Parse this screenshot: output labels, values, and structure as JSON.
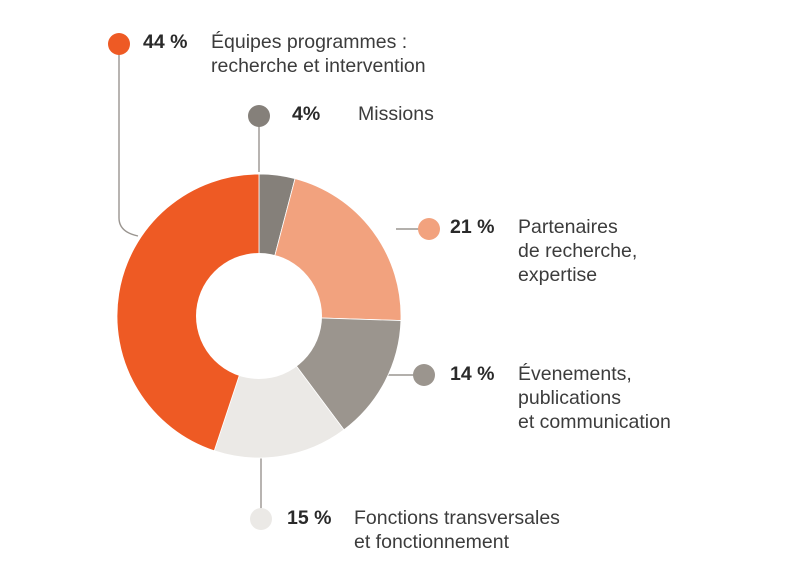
{
  "chart_data": {
    "type": "pie",
    "donut": true,
    "categories": [
      "Missions",
      "Partenaires de recherche, expertise",
      "Évenements, publications et communication",
      "Fonctions transversales et fonctionnement",
      "Équipes programmes : recherche et intervention"
    ],
    "values": [
      4,
      21,
      14,
      15,
      44
    ],
    "slices": [
      {
        "pct_label": "4%",
        "lines": [
          "Missions"
        ],
        "color": "#85807a"
      },
      {
        "pct_label": "21 %",
        "lines": [
          "Partenaires",
          "de recherche,",
          "expertise"
        ],
        "color": "#f2a27e"
      },
      {
        "pct_label": "14 %",
        "lines": [
          "Évenements,",
          "publications",
          "et communication"
        ],
        "color": "#9b958e"
      },
      {
        "pct_label": "15 %",
        "lines": [
          "Fonctions transversales",
          "et fonctionnement"
        ],
        "color": "#ebe9e6"
      },
      {
        "pct_label": "44 %",
        "lines": [
          "Équipes programmes :",
          "recherche et intervention"
        ],
        "color": "#ee5a24"
      }
    ]
  }
}
